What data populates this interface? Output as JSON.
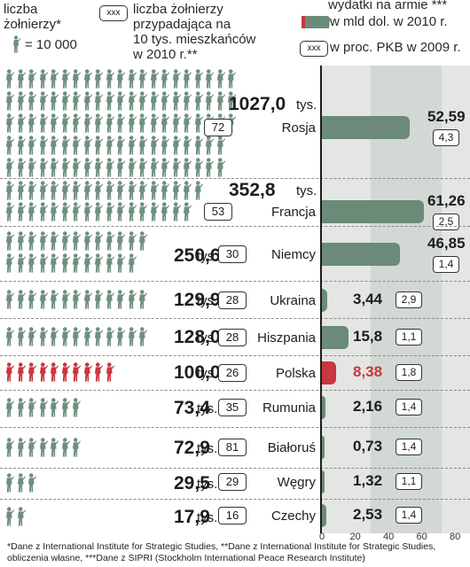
{
  "legend": {
    "soldiers_label_1": "liczba",
    "soldiers_label_2": "żołnierzy*",
    "soldier_unit": "= 10 000",
    "box_sample": "xxx",
    "per_label_1": "liczba żołnierzy",
    "per_label_2": "przypadająca na",
    "per_label_3": "10 tys. mieszkańców",
    "per_label_4": "w 2010 r.**",
    "exp_label_1": "wydatki na armie ***",
    "exp_label_2": "w mld dol.  w 2010 r.",
    "pkb_label": "w proc. PKB w 2009 r."
  },
  "unit_label": "tys.",
  "colors": {
    "soldier": "#6f8f7e",
    "poland": "#c8363f",
    "bar": "#6b8a78",
    "bar_poland": "#c8363f",
    "panel": "#e3e6e3"
  },
  "chart_data": {
    "type": "bar",
    "categories": [
      "Rosja",
      "Francja",
      "Niemcy",
      "Ukraina",
      "Hiszpania",
      "Polska",
      "Rumunia",
      "Białoruś",
      "Węgry",
      "Czechy"
    ],
    "series": [
      {
        "values": [
          "1027,0",
          "352,8",
          "250,6",
          "129,9",
          "128,0",
          "100,0",
          "73,4",
          "72,9",
          "29,5",
          "17,9"
        ]
      },
      {
        "values": [
          "72",
          "53",
          "30",
          "28",
          "28",
          "26",
          "35",
          "81",
          "29",
          "16"
        ]
      },
      {
        "values": [
          "52,59",
          "61,26",
          "46,85",
          "3,44",
          "15,8",
          "8,38",
          "2,16",
          "0,73",
          "1,32",
          "2,53"
        ]
      },
      {
        "values": [
          "4,3",
          "2,5",
          "1,4",
          "2,9",
          "1,1",
          "1,8",
          "1,4",
          "1,4",
          "1,1",
          "1,4"
        ]
      }
    ],
    "soldiers_thousands": [
      1027.0,
      352.8,
      250.6,
      129.9,
      128.0,
      100.0,
      73.4,
      72.9,
      29.5,
      17.9
    ],
    "spending_bn_usd": [
      52.59,
      61.26,
      46.85,
      3.44,
      15.8,
      8.38,
      2.16,
      0.73,
      1.32,
      2.53
    ],
    "xlim": [
      0,
      80
    ],
    "x_ticks": [
      "0",
      "20",
      "40",
      "60",
      "80"
    ]
  },
  "footnote": {
    "line1": "*Dane z International Institute for Strategic Studies, **Dane z International Institute for Strategic Studies,",
    "line2": "obliczenia własne, ***Dane z SIPRI (Stockholm International Peace Research Institute)"
  }
}
